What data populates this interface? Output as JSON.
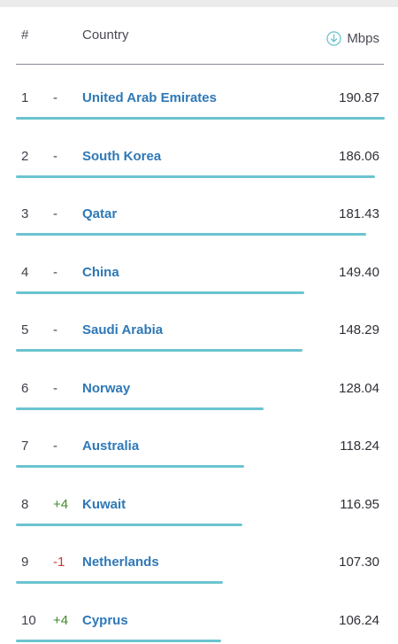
{
  "header": {
    "rank_label": "#",
    "country_label": "Country",
    "speed_label": "Mbps",
    "speed_icon": "download-circle-icon"
  },
  "colors": {
    "bar": "#6bc4cf",
    "country_link": "#2e78b7",
    "change_up": "#3e8a2c",
    "change_down": "#d0342c"
  },
  "max_speed": 190.87,
  "rows": [
    {
      "rank": "1",
      "change": "-",
      "change_dir": "none",
      "country": "United Arab Emirates",
      "speed": "190.87",
      "speed_value": 190.87
    },
    {
      "rank": "2",
      "change": "-",
      "change_dir": "none",
      "country": "South Korea",
      "speed": "186.06",
      "speed_value": 186.06
    },
    {
      "rank": "3",
      "change": "-",
      "change_dir": "none",
      "country": "Qatar",
      "speed": "181.43",
      "speed_value": 181.43
    },
    {
      "rank": "4",
      "change": "-",
      "change_dir": "none",
      "country": "China",
      "speed": "149.40",
      "speed_value": 149.4
    },
    {
      "rank": "5",
      "change": "-",
      "change_dir": "none",
      "country": "Saudi Arabia",
      "speed": "148.29",
      "speed_value": 148.29
    },
    {
      "rank": "6",
      "change": "-",
      "change_dir": "none",
      "country": "Norway",
      "speed": "128.04",
      "speed_value": 128.04
    },
    {
      "rank": "7",
      "change": "-",
      "change_dir": "none",
      "country": "Australia",
      "speed": "118.24",
      "speed_value": 118.24
    },
    {
      "rank": "8",
      "change": "+4",
      "change_dir": "up",
      "country": "Kuwait",
      "speed": "116.95",
      "speed_value": 116.95
    },
    {
      "rank": "9",
      "change": "-1",
      "change_dir": "down",
      "country": "Netherlands",
      "speed": "107.30",
      "speed_value": 107.3
    },
    {
      "rank": "10",
      "change": "+4",
      "change_dir": "up",
      "country": "Cyprus",
      "speed": "106.24",
      "speed_value": 106.24
    }
  ]
}
